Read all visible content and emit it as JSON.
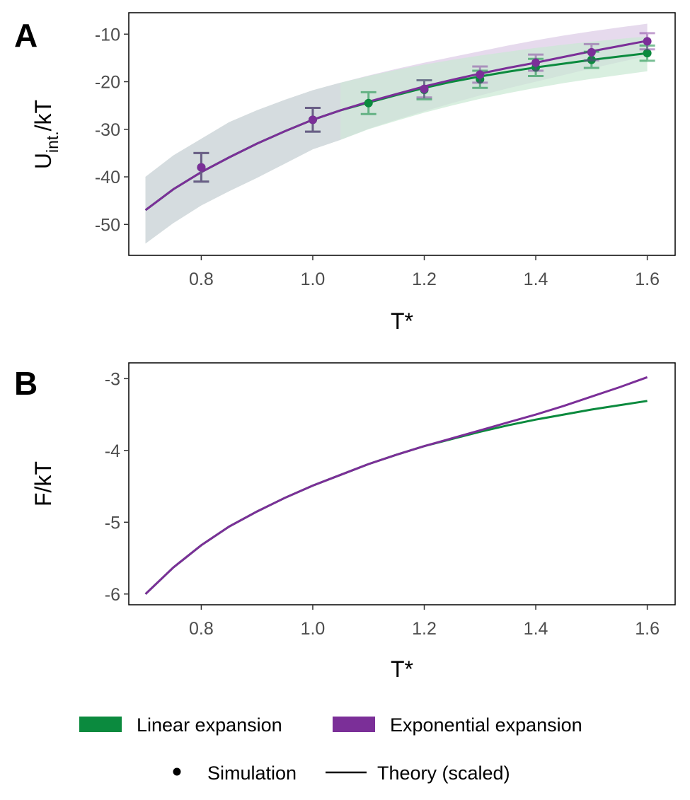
{
  "colors": {
    "linear": "#0b8a3e",
    "exponential": "#7b2f98",
    "linear_band": "#c9e8d3",
    "exponential_band": "#e2d3ea",
    "overlap_band": "#d5dcdf",
    "errorbar_overlap": "#6b5a86"
  },
  "legend": {
    "linear_label": "Linear expansion",
    "exponential_label": "Exponential expansion",
    "simulation_label": "Simulation",
    "theory_label": "Theory (scaled)"
  },
  "chart_data": [
    {
      "panel": "A",
      "type": "line",
      "xlabel": "T*",
      "ylabel_main": "U",
      "ylabel_sub": "int.",
      "ylabel_tail": "/kT",
      "xlim": [
        0.67,
        1.65
      ],
      "ylim": [
        -56.5,
        -5.5
      ],
      "xticks": [
        0.8,
        1.0,
        1.2,
        1.4,
        1.6
      ],
      "xtick_labels": [
        "0.8",
        "1.0",
        "1.2",
        "1.4",
        "1.6"
      ],
      "yticks": [
        -10,
        -20,
        -30,
        -40,
        -50
      ],
      "ytick_labels": [
        "-10",
        "-20",
        "-30",
        "-40",
        "-50"
      ],
      "theory_x": [
        0.7,
        0.75,
        0.8,
        0.85,
        0.9,
        0.95,
        1.0,
        1.05,
        1.1,
        1.15,
        1.2,
        1.25,
        1.3,
        1.35,
        1.4,
        1.45,
        1.5,
        1.55,
        1.6
      ],
      "series": [
        {
          "name": "Linear expansion",
          "theory": [
            -47.0,
            -42.6,
            -39.0,
            -35.9,
            -33.0,
            -30.4,
            -28.0,
            -26.0,
            -24.4,
            -22.8,
            -21.3,
            -20.0,
            -18.9,
            -17.9,
            -17.0,
            -16.2,
            -15.4,
            -14.7,
            -14.0
          ],
          "band_upper": [
            -40.0,
            -35.5,
            -32.0,
            -28.5,
            -26.0,
            -23.8,
            -21.8,
            -20.2,
            -18.8,
            -17.5,
            -16.4,
            -15.4,
            -14.5,
            -13.7,
            -12.9,
            -12.2,
            -11.6,
            -11.0,
            -10.5
          ],
          "band_lower": [
            -54.0,
            -49.7,
            -46.0,
            -43.0,
            -40.2,
            -37.2,
            -34.2,
            -32.2,
            -30.0,
            -28.2,
            -26.5,
            -25.0,
            -23.6,
            -22.4,
            -21.3,
            -20.3,
            -19.4,
            -18.6,
            -17.8
          ],
          "sim_x": [
            0.8,
            1.0,
            1.1,
            1.2,
            1.3,
            1.4,
            1.5,
            1.6
          ],
          "sim_y": [
            -38.0,
            -28.0,
            -24.5,
            -21.7,
            -19.5,
            -17.0,
            -15.4,
            -14.0
          ],
          "sim_err": [
            3.0,
            2.5,
            2.3,
            2.0,
            1.8,
            1.8,
            1.7,
            1.6
          ]
        },
        {
          "name": "Exponential expansion",
          "theory": [
            -47.0,
            -42.6,
            -39.0,
            -35.9,
            -33.0,
            -30.4,
            -28.0,
            -26.0,
            -24.2,
            -22.6,
            -21.0,
            -19.6,
            -18.3,
            -17.1,
            -16.0,
            -14.8,
            -13.6,
            -12.5,
            -11.4
          ],
          "band_upper": [
            -40.0,
            -35.5,
            -32.0,
            -28.5,
            -26.0,
            -23.8,
            -21.8,
            -20.2,
            -18.7,
            -17.3,
            -16.0,
            -14.8,
            -13.6,
            -12.4,
            -11.3,
            -10.3,
            -9.4,
            -8.6,
            -7.8
          ],
          "band_lower": [
            -54.0,
            -49.7,
            -46.0,
            -43.0,
            -40.2,
            -37.2,
            -34.2,
            -32.2,
            -29.9,
            -28.0,
            -26.2,
            -24.5,
            -22.9,
            -21.4,
            -20.0,
            -18.6,
            -17.2,
            -15.9,
            -14.6
          ],
          "sim_x": [
            0.8,
            1.0,
            1.2,
            1.3,
            1.4,
            1.5,
            1.6
          ],
          "sim_y": [
            -38.0,
            -28.0,
            -21.5,
            -18.5,
            -16.0,
            -13.8,
            -11.5
          ],
          "sim_err": [
            3.0,
            2.5,
            1.8,
            1.7,
            1.7,
            1.7,
            1.7
          ]
        }
      ]
    },
    {
      "panel": "B",
      "type": "line",
      "xlabel": "T*",
      "ylabel": "F/kT",
      "xlim": [
        0.67,
        1.65
      ],
      "ylim": [
        -6.15,
        -2.78
      ],
      "xticks": [
        0.8,
        1.0,
        1.2,
        1.4,
        1.6
      ],
      "xtick_labels": [
        "0.8",
        "1.0",
        "1.2",
        "1.4",
        "1.6"
      ],
      "yticks": [
        -3,
        -4,
        -5,
        -6
      ],
      "ytick_labels": [
        "-3",
        "-4",
        "-5",
        "-6"
      ],
      "x": [
        0.7,
        0.75,
        0.8,
        0.85,
        0.9,
        0.95,
        1.0,
        1.05,
        1.1,
        1.15,
        1.2,
        1.25,
        1.3,
        1.35,
        1.4,
        1.45,
        1.5,
        1.55,
        1.6
      ],
      "series": [
        {
          "name": "Linear expansion",
          "values": [
            -6.0,
            -5.63,
            -5.32,
            -5.06,
            -4.85,
            -4.66,
            -4.49,
            -4.34,
            -4.19,
            -4.06,
            -3.94,
            -3.84,
            -3.74,
            -3.65,
            -3.57,
            -3.5,
            -3.43,
            -3.37,
            -3.31
          ]
        },
        {
          "name": "Exponential expansion",
          "values": [
            -6.0,
            -5.63,
            -5.32,
            -5.06,
            -4.85,
            -4.66,
            -4.49,
            -4.34,
            -4.19,
            -4.06,
            -3.94,
            -3.83,
            -3.72,
            -3.61,
            -3.5,
            -3.38,
            -3.25,
            -3.12,
            -2.98
          ]
        }
      ]
    }
  ]
}
